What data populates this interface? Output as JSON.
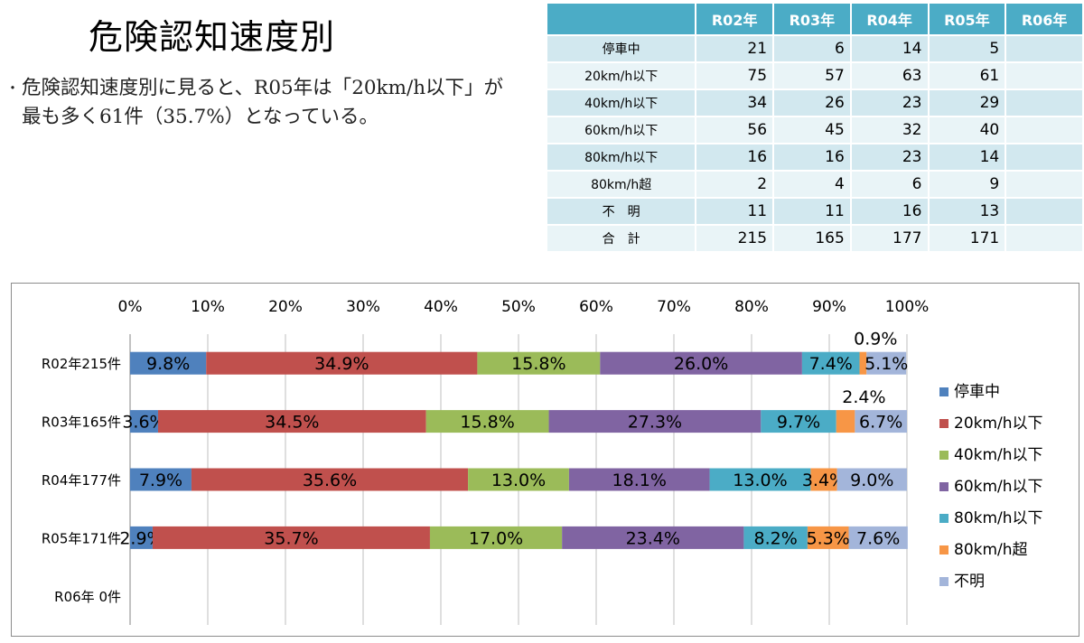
{
  "page": {
    "title": "危険認知速度別",
    "bullet": "危険認知速度別に見ると、R05年は「20km/h以下」が最も多く61件（35.7%）となっている。"
  },
  "table": {
    "header": [
      "",
      "R02年",
      "R03年",
      "R04年",
      "R05年",
      "R06年"
    ],
    "rows": [
      {
        "label": "停車中",
        "values": [
          "21",
          "6",
          "14",
          "5",
          ""
        ]
      },
      {
        "label": "20km/h以下",
        "values": [
          "75",
          "57",
          "63",
          "61",
          ""
        ]
      },
      {
        "label": "40km/h以下",
        "values": [
          "34",
          "26",
          "23",
          "29",
          ""
        ]
      },
      {
        "label": "60km/h以下",
        "values": [
          "56",
          "45",
          "32",
          "40",
          ""
        ]
      },
      {
        "label": "80km/h以下",
        "values": [
          "16",
          "16",
          "23",
          "14",
          ""
        ]
      },
      {
        "label": "80km/h超",
        "values": [
          "2",
          "4",
          "6",
          "9",
          ""
        ]
      },
      {
        "label": "不　明",
        "values": [
          "11",
          "11",
          "16",
          "13",
          ""
        ]
      },
      {
        "label": "合　計",
        "values": [
          "215",
          "165",
          "177",
          "171",
          ""
        ]
      }
    ]
  },
  "chart_data": {
    "type": "bar",
    "orientation": "horizontal-stacked-100",
    "categories": [
      "R02年215件",
      "R03年165件",
      "R04年177件",
      "R05年171件",
      "R06年 0件"
    ],
    "x_ticks": [
      "0%",
      "10%",
      "20%",
      "30%",
      "40%",
      "50%",
      "60%",
      "70%",
      "80%",
      "90%",
      "100%"
    ],
    "xlim": [
      0,
      100
    ],
    "grid": true,
    "legend_position": "right",
    "series": [
      {
        "name": "停車中",
        "color": "#4f81bd",
        "values": [
          9.8,
          3.6,
          7.9,
          2.9,
          null
        ],
        "labels": [
          "9.8%",
          "3.6%",
          "7.9%",
          "2.9%",
          ""
        ]
      },
      {
        "name": "20km/h以下",
        "color": "#c0504d",
        "values": [
          34.9,
          34.5,
          35.6,
          35.7,
          null
        ],
        "labels": [
          "34.9%",
          "34.5%",
          "35.6%",
          "35.7%",
          ""
        ]
      },
      {
        "name": "40km/h以下",
        "color": "#9bbb59",
        "values": [
          15.8,
          15.8,
          13.0,
          17.0,
          null
        ],
        "labels": [
          "15.8%",
          "15.8%",
          "13.0%",
          "17.0%",
          ""
        ]
      },
      {
        "name": "60km/h以下",
        "color": "#8064a2",
        "values": [
          26.0,
          27.3,
          18.1,
          23.4,
          null
        ],
        "labels": [
          "26.0%",
          "27.3%",
          "18.1%",
          "23.4%",
          ""
        ]
      },
      {
        "name": "80km/h以下",
        "color": "#4bacc6",
        "values": [
          7.4,
          9.7,
          13.0,
          8.2,
          null
        ],
        "labels": [
          "7.4%",
          "9.7%",
          "13.0%",
          "8.2%",
          ""
        ]
      },
      {
        "name": "80km/h超",
        "color": "#f79646",
        "values": [
          0.9,
          2.4,
          3.4,
          5.3,
          null
        ],
        "labels": [
          "0.9%",
          "2.4%",
          "3.4%",
          "5.3%",
          ""
        ]
      },
      {
        "name": "不明",
        "color": "#a3b5da",
        "values": [
          5.1,
          6.7,
          9.0,
          7.6,
          null
        ],
        "labels": [
          "5.1%",
          "6.7%",
          "9.0%",
          "7.6%",
          ""
        ]
      }
    ]
  }
}
